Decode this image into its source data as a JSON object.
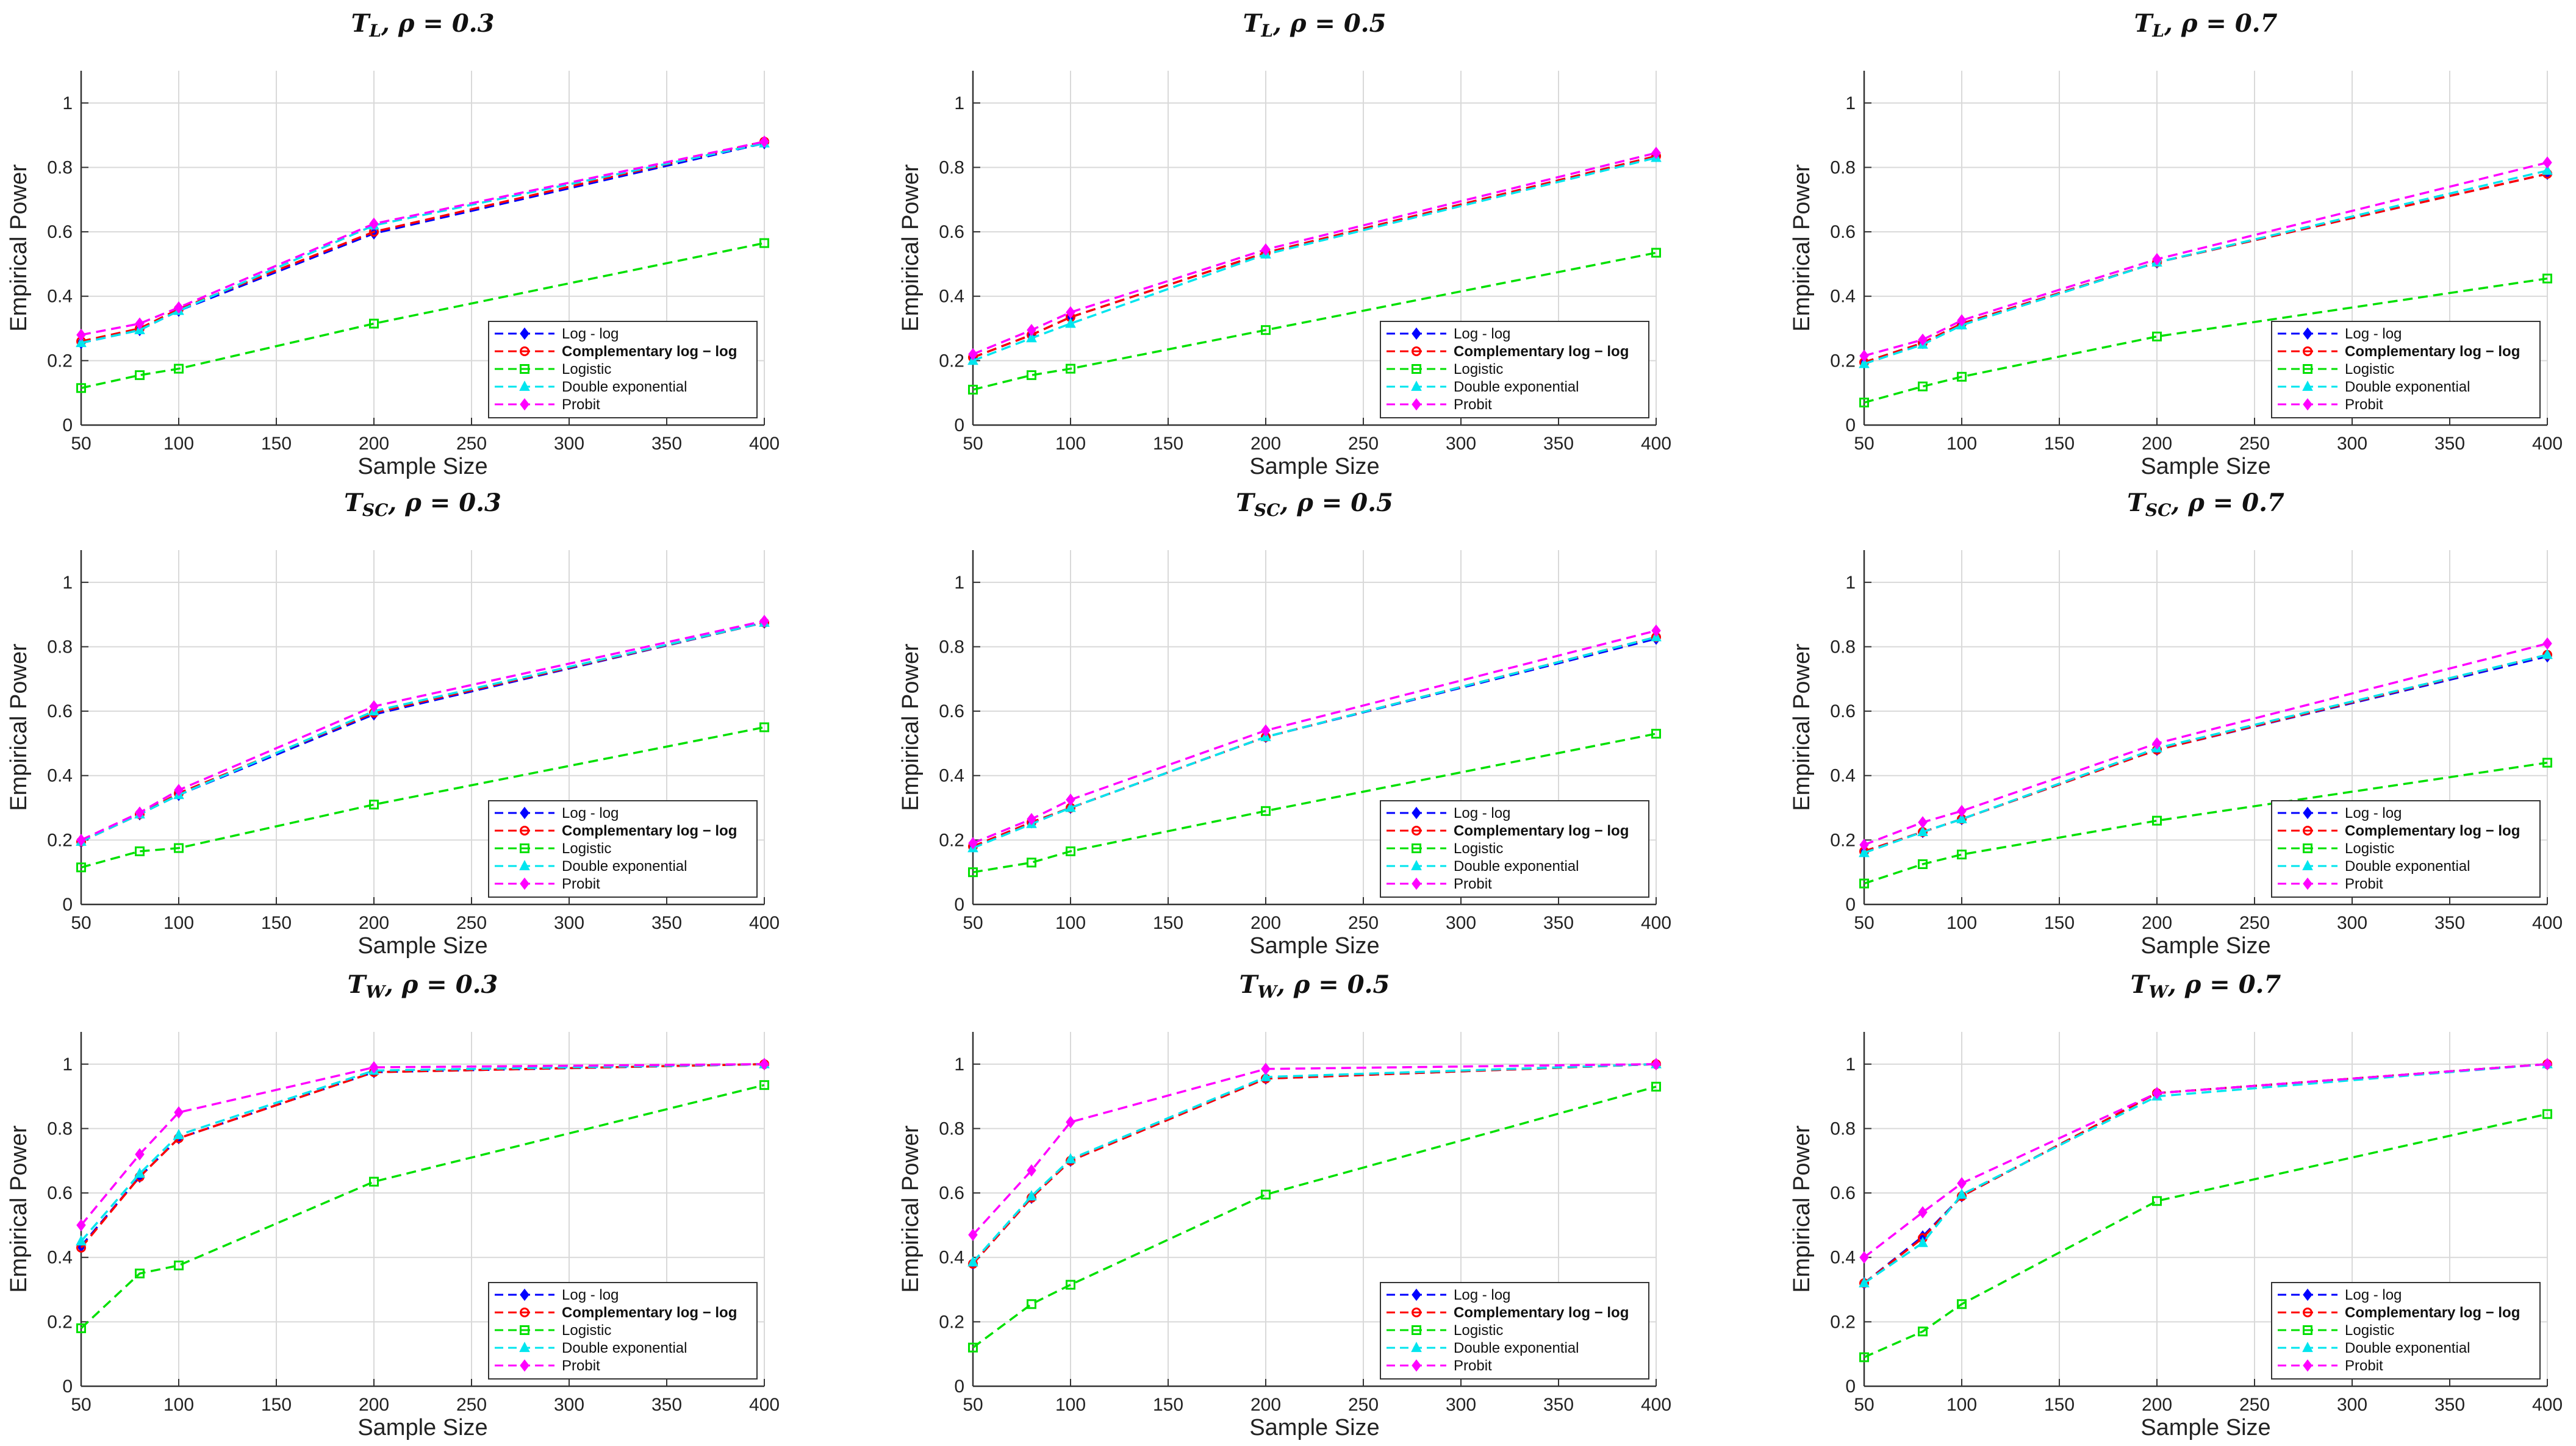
{
  "figure": {
    "styles": [
      {
        "name": "Log - log",
        "color": "#0000ff",
        "marker": "diamond"
      },
      {
        "name": "Complementary log − log",
        "color": "#ff0000",
        "marker": "circle"
      },
      {
        "name": "Logistic",
        "color": "#00e000",
        "marker": "square"
      },
      {
        "name": "Double exponential",
        "color": "#00e5ee",
        "marker": "triangle"
      },
      {
        "name": "Probit",
        "color": "#ff00ff",
        "marker": "diamond"
      }
    ]
  },
  "chart_data": [
    {
      "type": "line",
      "title": "T_L, ρ = 0.3",
      "xlabel": "Sample Size",
      "ylabel": "Empirical Power",
      "xlim": [
        50,
        400
      ],
      "ylim": [
        0,
        1.1
      ],
      "xticks": [
        50,
        100,
        150,
        200,
        250,
        300,
        350,
        400
      ],
      "yticks": [
        0,
        0.2,
        0.4,
        0.6,
        0.8,
        1
      ],
      "x": [
        50,
        80,
        100,
        200,
        400
      ],
      "series": [
        {
          "name": "Log - log",
          "values": [
            0.255,
            0.295,
            0.355,
            0.595,
            0.875
          ]
        },
        {
          "name": "Complementary log − log",
          "values": [
            0.26,
            0.3,
            0.36,
            0.6,
            0.88
          ]
        },
        {
          "name": "Logistic",
          "values": [
            0.115,
            0.155,
            0.175,
            0.315,
            0.565
          ]
        },
        {
          "name": "Double exponential",
          "values": [
            0.255,
            0.295,
            0.355,
            0.62,
            0.875
          ]
        },
        {
          "name": "Probit",
          "values": [
            0.28,
            0.315,
            0.365,
            0.625,
            0.88
          ]
        }
      ]
    },
    {
      "type": "line",
      "title": "T_L, ρ = 0.5",
      "xlabel": "Sample Size",
      "ylabel": "Empirical Power",
      "xlim": [
        50,
        400
      ],
      "ylim": [
        0,
        1.1
      ],
      "xticks": [
        50,
        100,
        150,
        200,
        250,
        300,
        350,
        400
      ],
      "yticks": [
        0,
        0.2,
        0.4,
        0.6,
        0.8,
        1
      ],
      "x": [
        50,
        80,
        100,
        200,
        400
      ],
      "series": [
        {
          "name": "Log - log",
          "values": [
            0.21,
            0.28,
            0.335,
            0.535,
            0.835
          ]
        },
        {
          "name": "Complementary log − log",
          "values": [
            0.21,
            0.28,
            0.335,
            0.535,
            0.835
          ]
        },
        {
          "name": "Logistic",
          "values": [
            0.11,
            0.155,
            0.175,
            0.295,
            0.535
          ]
        },
        {
          "name": "Double exponential",
          "values": [
            0.2,
            0.27,
            0.315,
            0.53,
            0.83
          ]
        },
        {
          "name": "Probit",
          "values": [
            0.22,
            0.295,
            0.35,
            0.545,
            0.845
          ]
        }
      ]
    },
    {
      "type": "line",
      "title": "T_L, ρ = 0.7",
      "xlabel": "Sample Size",
      "ylabel": "Empirical Power",
      "xlim": [
        50,
        400
      ],
      "ylim": [
        0,
        1.1
      ],
      "xticks": [
        50,
        100,
        150,
        200,
        250,
        300,
        350,
        400
      ],
      "yticks": [
        0,
        0.2,
        0.4,
        0.6,
        0.8,
        1
      ],
      "x": [
        50,
        80,
        100,
        200,
        400
      ],
      "series": [
        {
          "name": "Log - log",
          "values": [
            0.195,
            0.255,
            0.315,
            0.505,
            0.78
          ]
        },
        {
          "name": "Complementary log − log",
          "values": [
            0.195,
            0.255,
            0.315,
            0.505,
            0.78
          ]
        },
        {
          "name": "Logistic",
          "values": [
            0.07,
            0.12,
            0.15,
            0.275,
            0.455
          ]
        },
        {
          "name": "Double exponential",
          "values": [
            0.19,
            0.25,
            0.31,
            0.505,
            0.79
          ]
        },
        {
          "name": "Probit",
          "values": [
            0.215,
            0.265,
            0.325,
            0.515,
            0.815
          ]
        }
      ]
    },
    {
      "type": "line",
      "title": "T_SC, ρ = 0.3",
      "xlabel": "Sample Size",
      "ylabel": "Empirical Power",
      "xlim": [
        50,
        400
      ],
      "ylim": [
        0,
        1.1
      ],
      "xticks": [
        50,
        100,
        150,
        200,
        250,
        300,
        350,
        400
      ],
      "yticks": [
        0,
        0.2,
        0.4,
        0.6,
        0.8,
        1
      ],
      "x": [
        50,
        80,
        100,
        200,
        400
      ],
      "series": [
        {
          "name": "Log - log",
          "values": [
            0.195,
            0.28,
            0.34,
            0.59,
            0.875
          ]
        },
        {
          "name": "Complementary log − log",
          "values": [
            0.195,
            0.28,
            0.345,
            0.595,
            0.875
          ]
        },
        {
          "name": "Logistic",
          "values": [
            0.115,
            0.165,
            0.175,
            0.31,
            0.55
          ]
        },
        {
          "name": "Double exponential",
          "values": [
            0.195,
            0.28,
            0.34,
            0.6,
            0.875
          ]
        },
        {
          "name": "Probit",
          "values": [
            0.2,
            0.285,
            0.355,
            0.615,
            0.88
          ]
        }
      ]
    },
    {
      "type": "line",
      "title": "T_SC, ρ = 0.5",
      "xlabel": "Sample Size",
      "ylabel": "Empirical Power",
      "xlim": [
        50,
        400
      ],
      "ylim": [
        0,
        1.1
      ],
      "xticks": [
        50,
        100,
        150,
        200,
        250,
        300,
        350,
        400
      ],
      "yticks": [
        0,
        0.2,
        0.4,
        0.6,
        0.8,
        1
      ],
      "x": [
        50,
        80,
        100,
        200,
        400
      ],
      "series": [
        {
          "name": "Log - log",
          "values": [
            0.18,
            0.255,
            0.3,
            0.52,
            0.825
          ]
        },
        {
          "name": "Complementary log − log",
          "values": [
            0.18,
            0.255,
            0.3,
            0.52,
            0.83
          ]
        },
        {
          "name": "Logistic",
          "values": [
            0.1,
            0.13,
            0.165,
            0.29,
            0.53
          ]
        },
        {
          "name": "Double exponential",
          "values": [
            0.175,
            0.25,
            0.3,
            0.52,
            0.83
          ]
        },
        {
          "name": "Probit",
          "values": [
            0.19,
            0.265,
            0.325,
            0.54,
            0.85
          ]
        }
      ]
    },
    {
      "type": "line",
      "title": "T_SC, ρ = 0.7",
      "xlabel": "Sample Size",
      "ylabel": "Empirical Power",
      "xlim": [
        50,
        400
      ],
      "ylim": [
        0,
        1.1
      ],
      "xticks": [
        50,
        100,
        150,
        200,
        250,
        300,
        350,
        400
      ],
      "yticks": [
        0,
        0.2,
        0.4,
        0.6,
        0.8,
        1
      ],
      "x": [
        50,
        80,
        100,
        200,
        400
      ],
      "series": [
        {
          "name": "Log - log",
          "values": [
            0.165,
            0.225,
            0.265,
            0.48,
            0.77
          ]
        },
        {
          "name": "Complementary log − log",
          "values": [
            0.165,
            0.225,
            0.265,
            0.48,
            0.775
          ]
        },
        {
          "name": "Logistic",
          "values": [
            0.065,
            0.125,
            0.155,
            0.26,
            0.44
          ]
        },
        {
          "name": "Double exponential",
          "values": [
            0.16,
            0.225,
            0.265,
            0.485,
            0.775
          ]
        },
        {
          "name": "Probit",
          "values": [
            0.185,
            0.255,
            0.29,
            0.5,
            0.81
          ]
        }
      ]
    },
    {
      "type": "line",
      "title": "T_W, ρ = 0.3",
      "xlabel": "Sample Size",
      "ylabel": "Empirical Power",
      "xlim": [
        50,
        400
      ],
      "ylim": [
        0,
        1.1
      ],
      "xticks": [
        50,
        100,
        150,
        200,
        250,
        300,
        350,
        400
      ],
      "yticks": [
        0,
        0.2,
        0.4,
        0.6,
        0.8,
        1
      ],
      "x": [
        50,
        80,
        100,
        200,
        400
      ],
      "series": [
        {
          "name": "Log - log",
          "values": [
            0.435,
            0.65,
            0.77,
            0.975,
            1.0
          ]
        },
        {
          "name": "Complementary log − log",
          "values": [
            0.43,
            0.65,
            0.77,
            0.975,
            1.0
          ]
        },
        {
          "name": "Logistic",
          "values": [
            0.18,
            0.35,
            0.375,
            0.635,
            0.935
          ]
        },
        {
          "name": "Double exponential",
          "values": [
            0.45,
            0.66,
            0.78,
            0.98,
            1.0
          ]
        },
        {
          "name": "Probit",
          "values": [
            0.5,
            0.72,
            0.85,
            0.99,
            1.0
          ]
        }
      ]
    },
    {
      "type": "line",
      "title": "T_W, ρ = 0.5",
      "xlabel": "Sample Size",
      "ylabel": "Empirical Power",
      "xlim": [
        50,
        400
      ],
      "ylim": [
        0,
        1.1
      ],
      "xticks": [
        50,
        100,
        150,
        200,
        250,
        300,
        350,
        400
      ],
      "yticks": [
        0,
        0.2,
        0.4,
        0.6,
        0.8,
        1
      ],
      "x": [
        50,
        80,
        100,
        200,
        400
      ],
      "series": [
        {
          "name": "Log - log",
          "values": [
            0.38,
            0.585,
            0.7,
            0.955,
            1.0
          ]
        },
        {
          "name": "Complementary log − log",
          "values": [
            0.38,
            0.585,
            0.7,
            0.955,
            1.0
          ]
        },
        {
          "name": "Logistic",
          "values": [
            0.12,
            0.255,
            0.315,
            0.595,
            0.93
          ]
        },
        {
          "name": "Double exponential",
          "values": [
            0.385,
            0.59,
            0.705,
            0.96,
            1.0
          ]
        },
        {
          "name": "Probit",
          "values": [
            0.47,
            0.67,
            0.82,
            0.985,
            1.0
          ]
        }
      ]
    },
    {
      "type": "line",
      "title": "T_W, ρ = 0.7",
      "xlabel": "Sample Size",
      "ylabel": "Empirical Power",
      "xlim": [
        50,
        400
      ],
      "ylim": [
        0,
        1.1
      ],
      "xticks": [
        50,
        100,
        150,
        200,
        250,
        300,
        350,
        400
      ],
      "yticks": [
        0,
        0.2,
        0.4,
        0.6,
        0.8,
        1
      ],
      "x": [
        50,
        80,
        100,
        200,
        400
      ],
      "series": [
        {
          "name": "Log - log",
          "values": [
            0.32,
            0.465,
            0.59,
            0.91,
            1.0
          ]
        },
        {
          "name": "Complementary log − log",
          "values": [
            0.32,
            0.46,
            0.59,
            0.91,
            1.0
          ]
        },
        {
          "name": "Logistic",
          "values": [
            0.09,
            0.17,
            0.255,
            0.575,
            0.845
          ]
        },
        {
          "name": "Double exponential",
          "values": [
            0.32,
            0.445,
            0.595,
            0.9,
            1.0
          ]
        },
        {
          "name": "Probit",
          "values": [
            0.4,
            0.54,
            0.63,
            0.91,
            1.0
          ]
        }
      ]
    }
  ]
}
